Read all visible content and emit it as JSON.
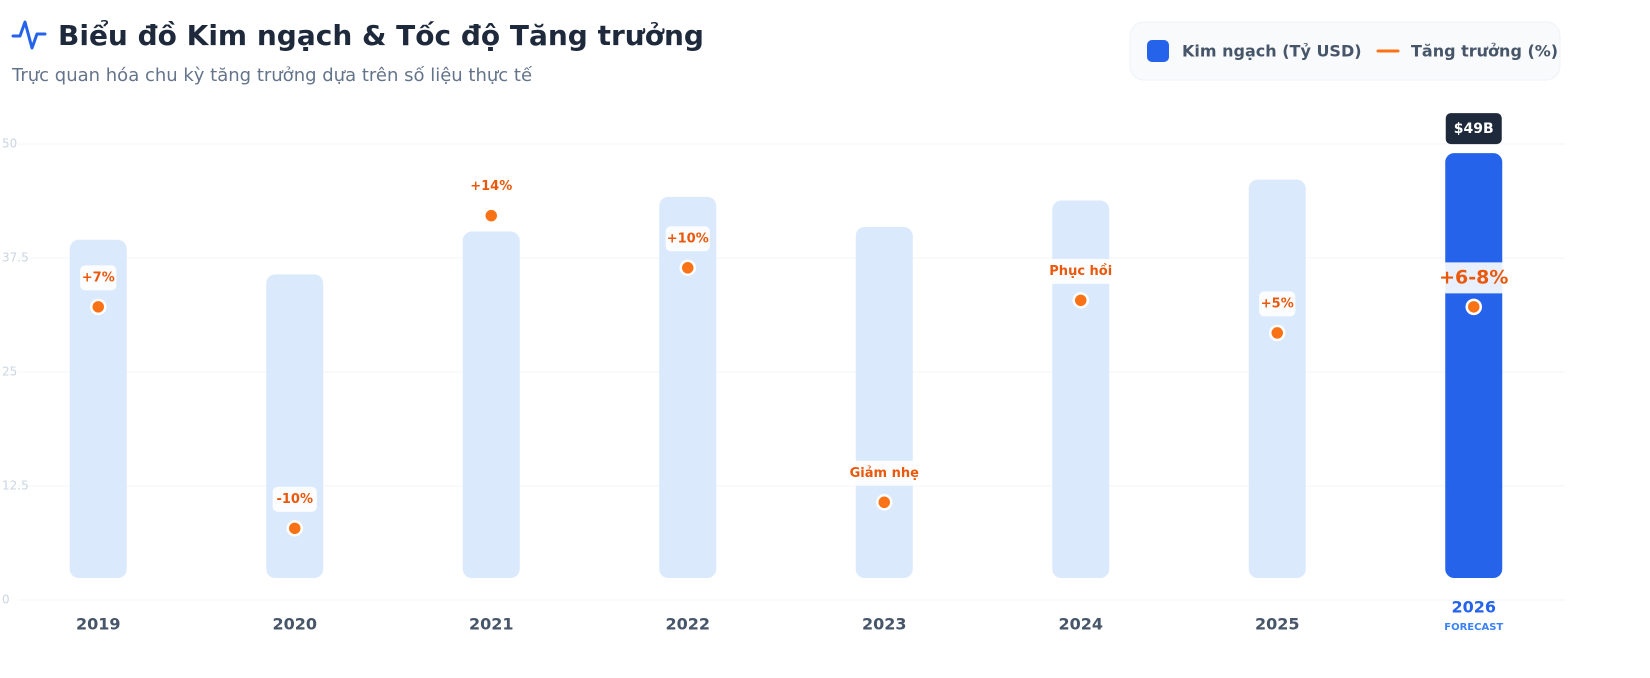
{
  "chart_data": {
    "type": "bar_line",
    "title": "Biểu đồ Kim ngạch & Tốc độ Tăng trưởng",
    "subtitle": "Trực quan hóa chu kỳ tăng trưởng dựa trên số liệu thực tế",
    "categories": [
      "2019",
      "2020",
      "2021",
      "2022",
      "2023",
      "2024",
      "2025",
      "2026"
    ],
    "series": [
      {
        "name": "Kim ngạch (Tỷ USD)",
        "color": "#dbe9fc",
        "values": [
          39.5,
          35.7,
          40.4,
          44.2,
          40.9,
          43.8,
          46.1,
          49
        ],
        "value_labels": [
          null,
          null,
          null,
          null,
          null,
          null,
          null,
          "$49B"
        ]
      },
      {
        "name": "Tăng trưởng (%)",
        "color": "#f97316",
        "axis": "y2",
        "values": [
          7,
          -10,
          14,
          10,
          -8,
          7.5,
          5,
          7
        ],
        "value_labels": [
          "+7%",
          "-10%",
          "+14%",
          "+10%",
          "Giảm nhẹ",
          "Phục hồi",
          "+5%",
          "+6-8%"
        ]
      }
    ],
    "highlight": {
      "category": "2026",
      "label": "FORECAST",
      "color": "#2563eb"
    },
    "ylim": [
      0,
      50
    ],
    "yticks": [
      0,
      12.5,
      25,
      37.5,
      50
    ],
    "y2lim": [
      -15.5,
      19.5
    ],
    "grid": true,
    "legend": "top-right"
  }
}
